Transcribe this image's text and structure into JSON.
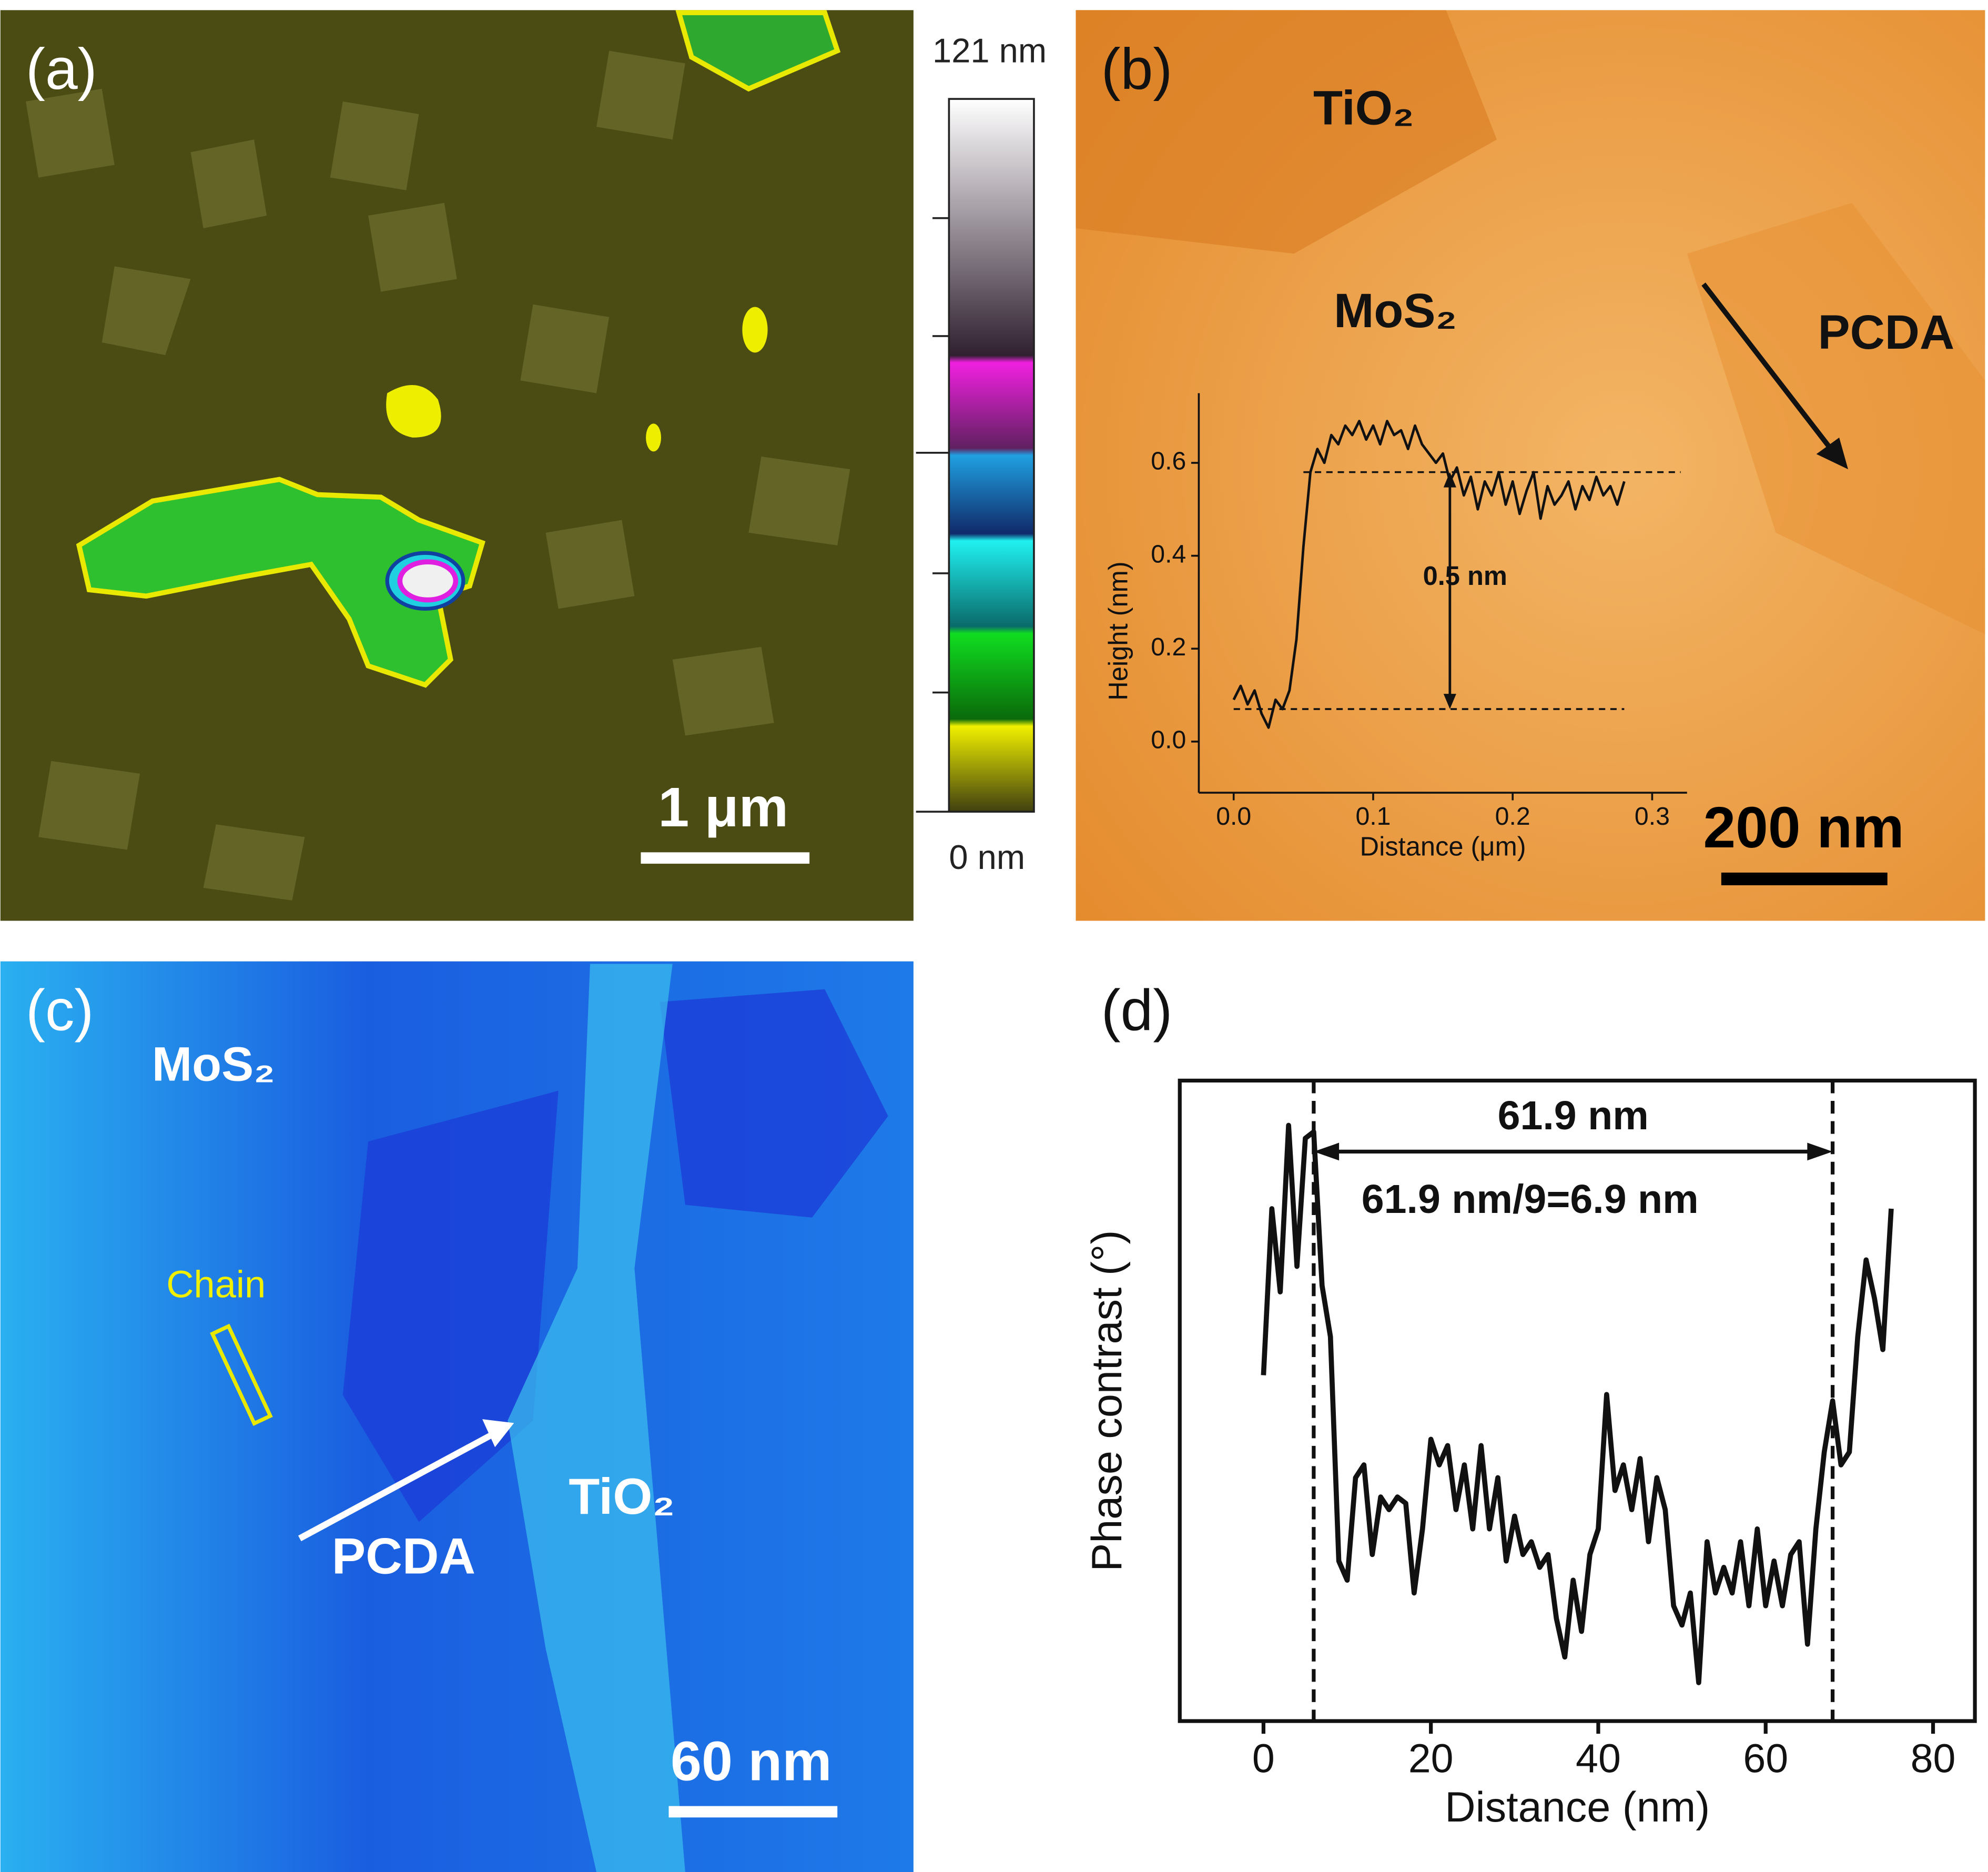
{
  "panels": {
    "a": {
      "label": "(a)",
      "top": "121 nm",
      "bottom": "0 nm",
      "scale": "1 μm"
    },
    "b": {
      "label": "(b)",
      "tio2": "TiO₂",
      "mos2": "MoS₂",
      "pcda": "PCDA",
      "scale": "200 nm"
    },
    "c": {
      "label": "(c)",
      "mos2": "MoS₂",
      "chain": "Chain",
      "pcda": "PCDA",
      "tio2": "TiO₂",
      "scale": "60 nm"
    },
    "d": {
      "label": "(d)"
    }
  },
  "chart_data": [
    {
      "type": "line",
      "xlabel": "Distance (μm)",
      "ylabel": "Height (nm)",
      "annotation": "0.5 nm",
      "xlim": [
        -0.025,
        0.325
      ],
      "ylim": [
        -0.11,
        0.75
      ],
      "xticks": [
        {
          "value": 0,
          "label": "0.0"
        },
        0.1,
        0.2,
        0.3
      ],
      "yticks": [
        {
          "value": 0,
          "label": "0.0"
        },
        0.2,
        0.4,
        0.6
      ],
      "hlines": [
        0.58,
        0.07
      ],
      "color": "#111111",
      "x": [
        0,
        0.005,
        0.01,
        0.015,
        0.02,
        0.025,
        0.03,
        0.035,
        0.04,
        0.045,
        0.05,
        0.055,
        0.06,
        0.065,
        0.07,
        0.075,
        0.08,
        0.085,
        0.09,
        0.095,
        0.1,
        0.105,
        0.11,
        0.115,
        0.12,
        0.125,
        0.13,
        0.135,
        0.14,
        0.145,
        0.15,
        0.155,
        0.16,
        0.165,
        0.17,
        0.175,
        0.18,
        0.185,
        0.19,
        0.195,
        0.2,
        0.205,
        0.21,
        0.215,
        0.22,
        0.225,
        0.23,
        0.235,
        0.24,
        0.245,
        0.25,
        0.255,
        0.26,
        0.265,
        0.27,
        0.275,
        0.28
      ],
      "values": [
        0.09,
        0.12,
        0.08,
        0.11,
        0.06,
        0.03,
        0.09,
        0.07,
        0.11,
        0.22,
        0.42,
        0.58,
        0.63,
        0.6,
        0.66,
        0.64,
        0.68,
        0.66,
        0.69,
        0.65,
        0.68,
        0.64,
        0.69,
        0.66,
        0.67,
        0.63,
        0.68,
        0.64,
        0.62,
        0.6,
        0.62,
        0.56,
        0.59,
        0.53,
        0.57,
        0.5,
        0.56,
        0.53,
        0.58,
        0.51,
        0.56,
        0.49,
        0.54,
        0.58,
        0.48,
        0.55,
        0.51,
        0.53,
        0.56,
        0.5,
        0.55,
        0.52,
        0.57,
        0.53,
        0.55,
        0.51,
        0.56
      ]
    },
    {
      "type": "line",
      "xlabel": "Distance (nm)",
      "ylabel": "Phase contrast (°)",
      "annotations": [
        "61.9 nm",
        "61.9 nm/9=6.9 nm"
      ],
      "xlim": [
        -10,
        85
      ],
      "ylim": [
        0,
        1
      ],
      "xticks": [
        0,
        20,
        40,
        60,
        80
      ],
      "vlines": [
        6,
        68
      ],
      "color": "#111111",
      "x": [
        0,
        1,
        2,
        3,
        4,
        5,
        6,
        7,
        8,
        9,
        10,
        11,
        12,
        13,
        14,
        15,
        16,
        17,
        18,
        19,
        20,
        21,
        22,
        23,
        24,
        25,
        26,
        27,
        28,
        29,
        30,
        31,
        32,
        33,
        34,
        35,
        36,
        37,
        38,
        39,
        40,
        41,
        42,
        43,
        44,
        45,
        46,
        47,
        48,
        49,
        50,
        51,
        52,
        53,
        54,
        55,
        56,
        57,
        58,
        59,
        60,
        61,
        62,
        63,
        64,
        65,
        66,
        67,
        68,
        69,
        70,
        71,
        72,
        73,
        74,
        75
      ],
      "values": [
        0.54,
        0.8,
        0.67,
        0.93,
        0.71,
        0.91,
        0.92,
        0.68,
        0.6,
        0.25,
        0.22,
        0.38,
        0.4,
        0.26,
        0.35,
        0.33,
        0.35,
        0.34,
        0.2,
        0.3,
        0.44,
        0.4,
        0.43,
        0.33,
        0.4,
        0.3,
        0.43,
        0.3,
        0.38,
        0.25,
        0.32,
        0.26,
        0.28,
        0.24,
        0.26,
        0.16,
        0.1,
        0.22,
        0.14,
        0.26,
        0.3,
        0.51,
        0.36,
        0.4,
        0.33,
        0.41,
        0.28,
        0.38,
        0.33,
        0.18,
        0.15,
        0.2,
        0.06,
        0.28,
        0.2,
        0.24,
        0.2,
        0.28,
        0.18,
        0.3,
        0.18,
        0.25,
        0.18,
        0.26,
        0.28,
        0.12,
        0.3,
        0.42,
        0.5,
        0.4,
        0.42,
        0.6,
        0.72,
        0.66,
        0.58,
        0.8
      ]
    }
  ]
}
